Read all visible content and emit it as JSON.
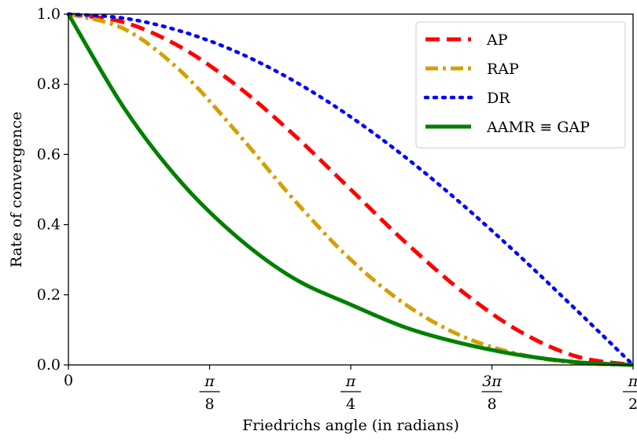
{
  "chart_data": {
    "type": "line",
    "xlabel": "Friedrichs angle (in radians)",
    "ylabel": "Rate of convergence",
    "xlim": [
      0,
      1.5708
    ],
    "ylim": [
      0,
      1.0
    ],
    "grid": false,
    "legend_position": "top-right",
    "x_ticks": [
      {
        "value": 0,
        "label": "0"
      },
      {
        "value": 0.3927,
        "num": "π",
        "den": "8"
      },
      {
        "value": 0.7854,
        "num": "π",
        "den": "4"
      },
      {
        "value": 1.1781,
        "num": "3π",
        "den": "8"
      },
      {
        "value": 1.5708,
        "num": "π",
        "den": "2"
      }
    ],
    "y_ticks": [
      {
        "value": 0.0,
        "label": "0.0"
      },
      {
        "value": 0.2,
        "label": "0.2"
      },
      {
        "value": 0.4,
        "label": "0.4"
      },
      {
        "value": 0.6,
        "label": "0.6"
      },
      {
        "value": 0.8,
        "label": "0.8"
      },
      {
        "value": 1.0,
        "label": "1.0"
      }
    ],
    "series": [
      {
        "name": "AP",
        "color": "#ff0000",
        "style": "dashed",
        "x": [
          0,
          0.1571,
          0.3142,
          0.4712,
          0.6283,
          0.7854,
          0.9425,
          1.0996,
          1.2566,
          1.4137,
          1.5708
        ],
        "y": [
          1.0,
          0.976,
          0.905,
          0.794,
          0.655,
          0.5,
          0.345,
          0.206,
          0.095,
          0.024,
          0.0
        ]
      },
      {
        "name": "RAP",
        "color": "#d4a006",
        "style": "dashdot",
        "x": [
          0,
          0.1571,
          0.3142,
          0.4712,
          0.6283,
          0.7854,
          0.9425,
          1.0996,
          1.2566,
          1.4137,
          1.5708
        ],
        "y": [
          1.0,
          0.957,
          0.836,
          0.66,
          0.47,
          0.3,
          0.169,
          0.08,
          0.03,
          0.006,
          0.0
        ]
      },
      {
        "name": "DR",
        "color": "#0000ff",
        "style": "dotted",
        "x": [
          0,
          0.1571,
          0.3142,
          0.4712,
          0.6283,
          0.7854,
          0.9425,
          1.0996,
          1.2566,
          1.4137,
          1.5708
        ],
        "y": [
          1.0,
          0.988,
          0.951,
          0.891,
          0.809,
          0.707,
          0.588,
          0.454,
          0.309,
          0.156,
          0.0
        ]
      },
      {
        "name": "AAMR ≡ GAP",
        "color": "#008000",
        "style": "solid",
        "x": [
          0,
          0.1571,
          0.3142,
          0.4712,
          0.6283,
          0.7854,
          0.9425,
          1.0996,
          1.2566,
          1.4137,
          1.5708
        ],
        "y": [
          1.0,
          0.729,
          0.52,
          0.363,
          0.246,
          0.172,
          0.105,
          0.06,
          0.028,
          0.008,
          0.0
        ]
      }
    ]
  }
}
